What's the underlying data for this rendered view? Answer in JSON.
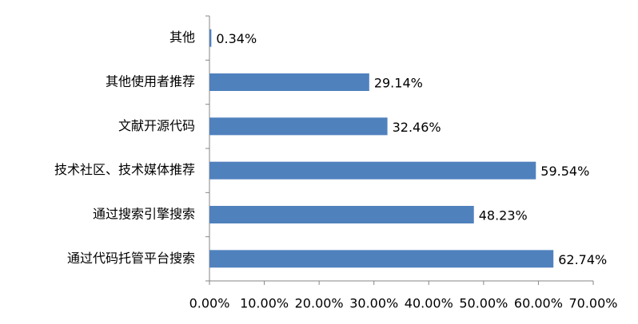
{
  "chart_data": {
    "type": "barh",
    "categories": [
      "其他",
      "其他使用者推荐",
      "文献开源代码",
      "技术社区、技术媒体推荐",
      "通过搜索引擎搜索",
      "通过代码托管平台搜索"
    ],
    "values": [
      0.34,
      29.14,
      32.46,
      59.54,
      48.23,
      62.74
    ],
    "value_labels": [
      "0.34%",
      "29.14%",
      "32.46%",
      "59.54%",
      "48.23%",
      "62.74%"
    ],
    "color": "#4f81bd",
    "xlim": [
      0,
      70
    ],
    "xticks": [
      {
        "value": 0,
        "label": "0.00%"
      },
      {
        "value": 10,
        "label": "10.00%"
      },
      {
        "value": 20,
        "label": "20.00%"
      },
      {
        "value": 30,
        "label": "30.00%"
      },
      {
        "value": 40,
        "label": "40.00%"
      },
      {
        "value": 50,
        "label": "50.00%"
      },
      {
        "value": 60,
        "label": "60.00%"
      },
      {
        "value": 70,
        "label": "70.00%"
      }
    ],
    "grid": false
  }
}
